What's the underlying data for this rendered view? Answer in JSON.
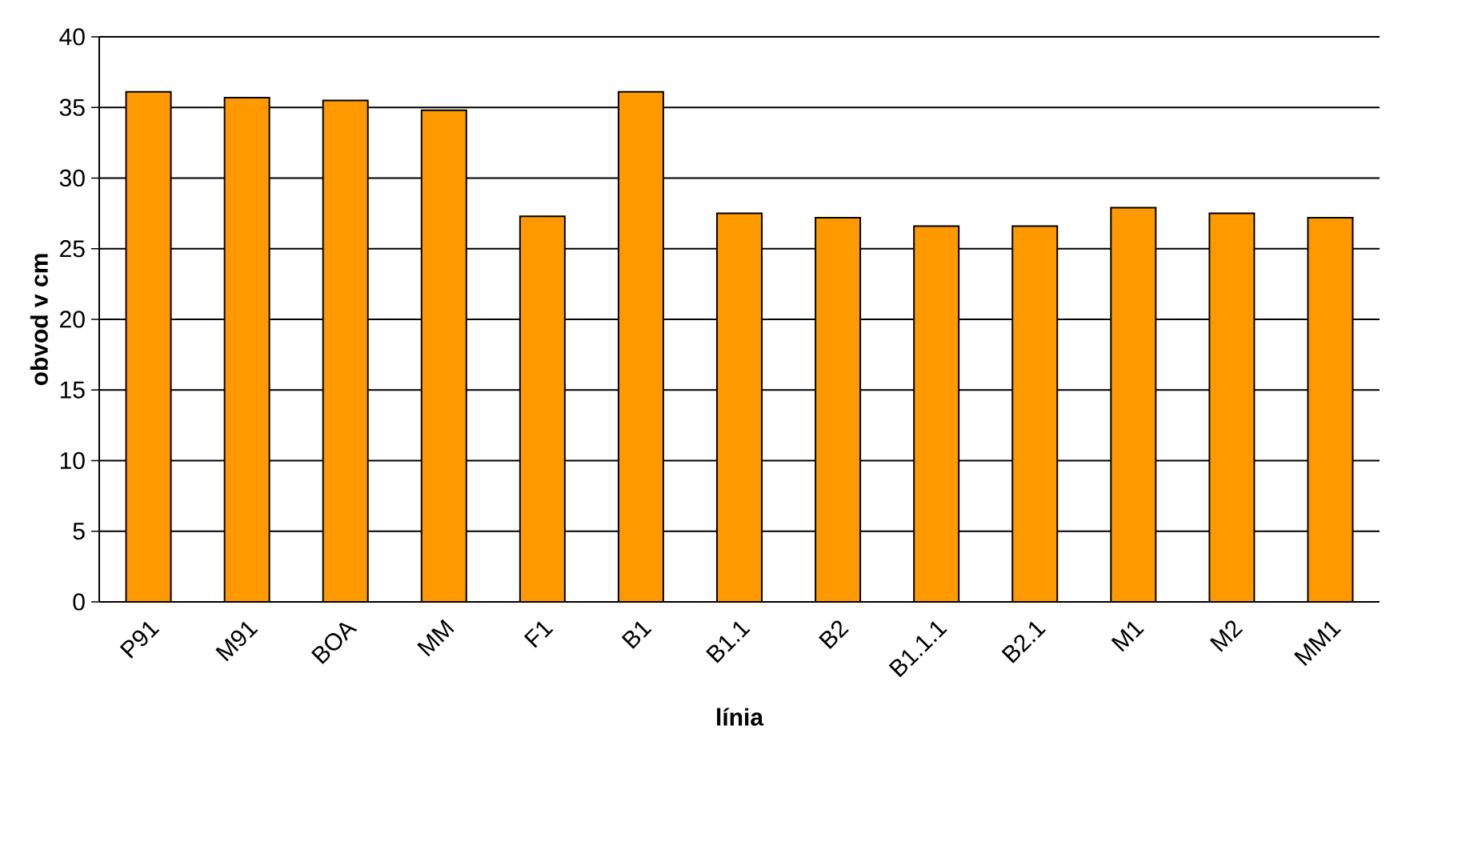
{
  "chart_data": {
    "type": "bar",
    "xlabel": "línia",
    "ylabel": "obvod v cm",
    "categories": [
      "P91",
      "M91",
      "BOA",
      "MM",
      "F1",
      "B1",
      "B1.1",
      "B2",
      "B1.1.1",
      "B2.1",
      "M1",
      "M2",
      "MM1"
    ],
    "values": [
      36.1,
      35.7,
      35.5,
      34.8,
      27.3,
      36.1,
      27.5,
      27.2,
      26.6,
      26.6,
      27.9,
      27.5,
      27.2
    ],
    "color": "#ff9900",
    "ylim": [
      0,
      40
    ],
    "yticks": [
      0,
      5,
      10,
      15,
      20,
      25,
      30,
      35,
      40
    ],
    "grid": "y"
  }
}
